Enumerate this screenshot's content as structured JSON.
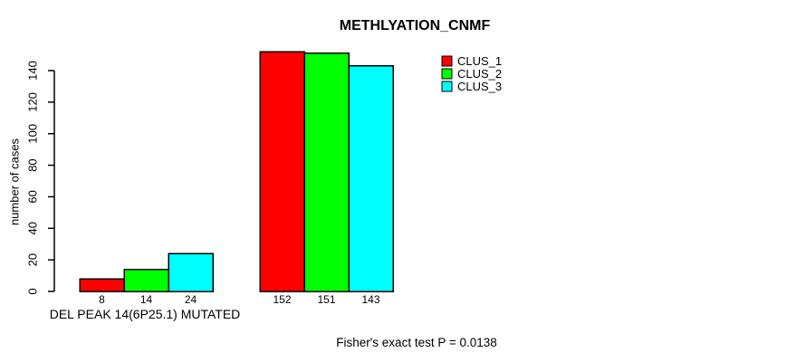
{
  "chart_data": {
    "type": "bar",
    "title": "METHLYATION_CNMF",
    "ylabel": "number of cases",
    "xlabel": "DEL PEAK 14(6P25.1) MUTATED",
    "annotation": "Fisher's exact test P = 0.0138",
    "ylim": [
      0,
      140
    ],
    "yticks": [
      0,
      20,
      40,
      60,
      80,
      100,
      120,
      140
    ],
    "grid": false,
    "legend_position": "top-right",
    "categories": [
      "DEL PEAK 14(6P25.1) MUTATED",
      ""
    ],
    "series": [
      {
        "name": "CLUS_1",
        "color": "#ff0000",
        "values": [
          8,
          152
        ]
      },
      {
        "name": "CLUS_2",
        "color": "#00ff00",
        "values": [
          14,
          151
        ]
      },
      {
        "name": "CLUS_3",
        "color": "#00ffff",
        "values": [
          24,
          143
        ]
      }
    ],
    "bar_value_labels": [
      [
        "8",
        "14",
        "24"
      ],
      [
        "152",
        "151",
        "143"
      ]
    ]
  },
  "colors": {
    "background": "#ffffff",
    "axis": "#000000",
    "bar_border": "#000000",
    "text": "#000000"
  }
}
